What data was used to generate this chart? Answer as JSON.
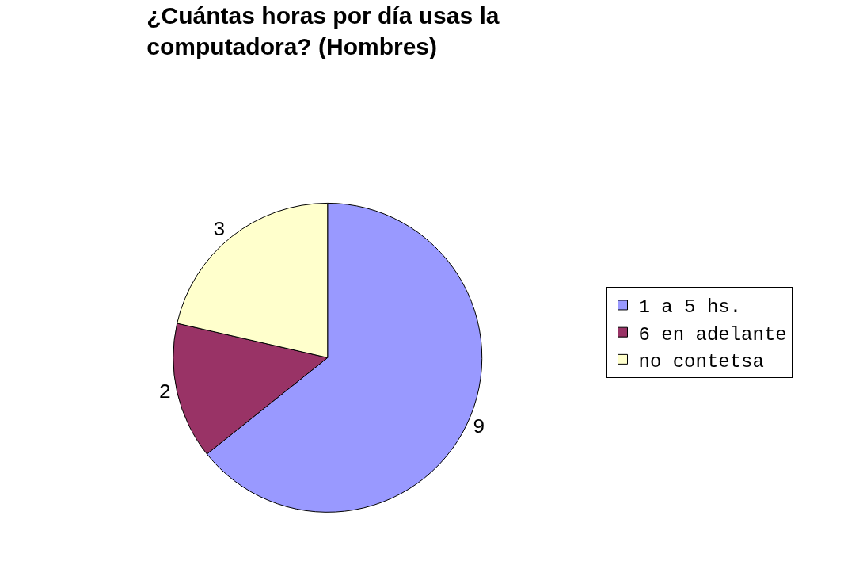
{
  "chart_data": {
    "type": "pie",
    "title": "¿Cuántas horas por día usas la\ncomputadora? (Hombres)",
    "categories": [
      "1 a 5 hs.",
      "6 en adelante",
      "no contetsa"
    ],
    "values": [
      9,
      2,
      3
    ],
    "colors": [
      "#9999ff",
      "#993366",
      "#ffffcc"
    ],
    "data_labels": true,
    "legend": "right"
  }
}
